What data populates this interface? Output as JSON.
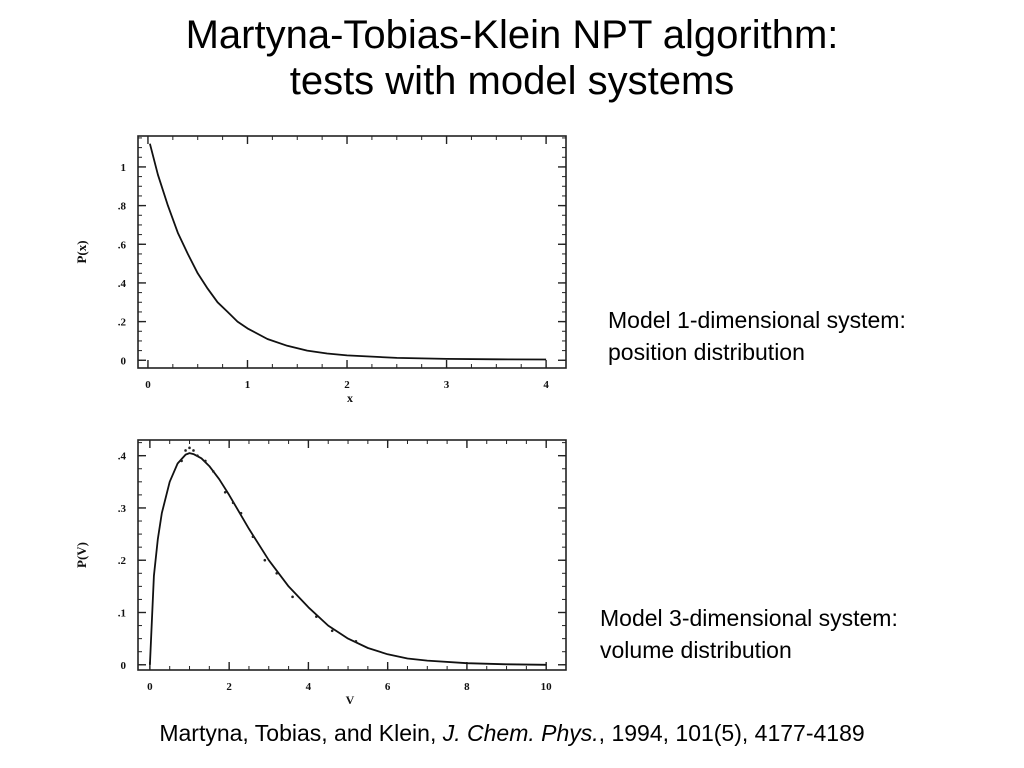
{
  "slide": {
    "title_line1": "Martyna-Tobias-Klein NPT algorithm:",
    "title_line2": "tests with model systems",
    "caption1_line1": "Model 1-dimensional system:",
    "caption1_line2": "position distribution",
    "caption2_line1": "Model 3-dimensional system:",
    "caption2_line2": "volume distribution",
    "reference": {
      "authors": "Martyna, Tobias, and Klein, ",
      "journal": "J. Chem. Phys.",
      "details": ", 1994, 101(5), 4177-4189"
    }
  },
  "chart_data": [
    {
      "type": "line",
      "xlabel": "x",
      "ylabel": "P(x)",
      "xlim": [
        -0.1,
        4.2
      ],
      "ylim": [
        -0.04,
        1.16
      ],
      "xticks": [
        0,
        1,
        2,
        3,
        4
      ],
      "xtick_labels": [
        "0",
        "1",
        "2",
        "3",
        "4"
      ],
      "yticks": [
        0,
        0.2,
        0.4,
        0.6,
        0.8,
        1.0
      ],
      "ytick_labels": [
        "0",
        ".2",
        ".4",
        ".6",
        ".8",
        "1"
      ],
      "grid": false,
      "series": [
        {
          "x": [
            0.02,
            0.1,
            0.2,
            0.3,
            0.4,
            0.5,
            0.6,
            0.7,
            0.8,
            0.9,
            1.0,
            1.2,
            1.4,
            1.6,
            1.8,
            2.0,
            2.5,
            3.0,
            3.5,
            4.0
          ],
          "y": [
            1.12,
            0.96,
            0.8,
            0.66,
            0.55,
            0.45,
            0.37,
            0.3,
            0.25,
            0.2,
            0.165,
            0.11,
            0.075,
            0.05,
            0.035,
            0.025,
            0.012,
            0.007,
            0.005,
            0.004
          ]
        }
      ]
    },
    {
      "type": "line",
      "xlabel": "V",
      "ylabel": "P(V)",
      "xlim": [
        -0.3,
        10.5
      ],
      "ylim": [
        -0.01,
        0.43
      ],
      "xticks": [
        0,
        2,
        4,
        6,
        8,
        10
      ],
      "xtick_labels": [
        "0",
        "2",
        "4",
        "6",
        "8",
        "10"
      ],
      "yticks": [
        0,
        0.1,
        0.2,
        0.3,
        0.4
      ],
      "ytick_labels": [
        "0",
        ".1",
        ".2",
        ".3",
        ".4"
      ],
      "grid": false,
      "series": [
        {
          "x": [
            0.0,
            0.1,
            0.2,
            0.3,
            0.5,
            0.7,
            0.9,
            1.0,
            1.1,
            1.3,
            1.5,
            1.75,
            2.0,
            2.5,
            3.0,
            3.5,
            4.0,
            4.5,
            5.0,
            5.5,
            6.0,
            6.5,
            7.0,
            8.0,
            9.0,
            10.0
          ],
          "y": [
            0.0,
            0.17,
            0.24,
            0.29,
            0.35,
            0.385,
            0.402,
            0.405,
            0.403,
            0.395,
            0.38,
            0.355,
            0.325,
            0.26,
            0.2,
            0.15,
            0.11,
            0.075,
            0.05,
            0.032,
            0.02,
            0.012,
            0.008,
            0.003,
            0.001,
            0.0
          ]
        },
        {
          "x": [
            0.8,
            0.9,
            1.0,
            1.1,
            1.2,
            1.4,
            1.6,
            1.9,
            2.1,
            2.3,
            2.6,
            2.9,
            3.2,
            3.6,
            4.2,
            4.6,
            5.2
          ],
          "y": [
            0.39,
            0.41,
            0.415,
            0.41,
            0.4,
            0.39,
            0.37,
            0.33,
            0.31,
            0.29,
            0.245,
            0.2,
            0.175,
            0.13,
            0.092,
            0.065,
            0.045
          ]
        }
      ]
    }
  ]
}
